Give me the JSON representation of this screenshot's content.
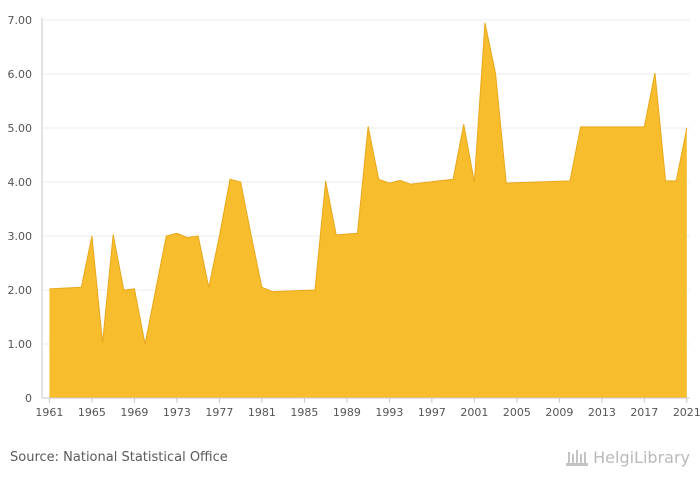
{
  "chart_data": {
    "type": "area",
    "title": "",
    "xlabel": "",
    "ylabel": "",
    "x": [
      1961,
      1964,
      1965,
      1966,
      1967,
      1968,
      1969,
      1970,
      1971,
      1972,
      1973,
      1974,
      1975,
      1976,
      1977,
      1978,
      1979,
      1980,
      1981,
      1982,
      1986,
      1987,
      1988,
      1990,
      1991,
      1992,
      1993,
      1994,
      1995,
      1999,
      2000,
      2001,
      2002,
      2003,
      2004,
      2010,
      2011,
      2017,
      2018,
      2019,
      2020,
      2021
    ],
    "values": [
      2.02,
      2.05,
      3.0,
      1.02,
      3.03,
      2.0,
      2.02,
      1.0,
      2.0,
      3.0,
      3.05,
      2.97,
      3.0,
      2.05,
      3.0,
      4.05,
      4.0,
      3.0,
      2.05,
      1.97,
      2.0,
      4.02,
      3.02,
      3.05,
      5.03,
      4.05,
      3.98,
      4.03,
      3.96,
      4.05,
      5.07,
      4.0,
      6.95,
      6.0,
      3.98,
      4.02,
      5.02,
      5.02,
      6.02,
      4.02,
      4.02,
      5.0
    ],
    "series_color": "#f8bd2d",
    "series_edge_color": "#e8a81e",
    "ylim": [
      0,
      7.0
    ],
    "xlim": [
      1960.3,
      2021.3
    ],
    "yticks": [
      0,
      1.0,
      2.0,
      3.0,
      4.0,
      5.0,
      6.0,
      7.0
    ],
    "ytick_labels": [
      "0",
      "1.00",
      "2.00",
      "3.00",
      "4.00",
      "5.00",
      "6.00",
      "7.00"
    ],
    "xticks": [
      1961,
      1965,
      1969,
      1973,
      1977,
      1981,
      1985,
      1989,
      1993,
      1997,
      2001,
      2005,
      2009,
      2013,
      2017,
      2021
    ],
    "xtick_labels": [
      "1961",
      "1965",
      "1969",
      "1973",
      "1977",
      "1981",
      "1985",
      "1989",
      "1993",
      "1997",
      "2001",
      "2005",
      "2009",
      "2013",
      "2017",
      "2021"
    ],
    "grid": true
  },
  "footer": {
    "source": "Source: National Statistical Office",
    "brand": "HelgiLibrary"
  }
}
